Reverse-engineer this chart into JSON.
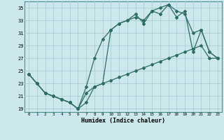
{
  "xlabel": "Humidex (Indice chaleur)",
  "xlim": [
    -0.5,
    23.5
  ],
  "ylim": [
    18.5,
    36
  ],
  "xticks": [
    0,
    1,
    2,
    3,
    4,
    5,
    6,
    7,
    8,
    9,
    10,
    11,
    12,
    13,
    14,
    15,
    16,
    17,
    18,
    19,
    20,
    21,
    22,
    23
  ],
  "yticks": [
    19,
    21,
    23,
    25,
    27,
    29,
    31,
    33,
    35
  ],
  "bg_color": "#cce8ec",
  "grid_color": "#aacdd4",
  "line_color": "#2d6b65",
  "line1_x": [
    0,
    1,
    2,
    3,
    4,
    5,
    6,
    7,
    8,
    9,
    10,
    11,
    12,
    13,
    14,
    15,
    16,
    17,
    18,
    19,
    20,
    21,
    22,
    23
  ],
  "line1_y": [
    24.5,
    23.0,
    21.5,
    21.0,
    20.5,
    20.0,
    19.0,
    22.5,
    27.0,
    30.0,
    31.5,
    32.5,
    33.0,
    33.5,
    33.0,
    34.5,
    34.0,
    35.5,
    34.5,
    34.0,
    31.0,
    31.5,
    28.0,
    27.0
  ],
  "line2_x": [
    0,
    1,
    2,
    3,
    4,
    5,
    6,
    7,
    8,
    9,
    10,
    11,
    12,
    13,
    14,
    15,
    16,
    17,
    18,
    19,
    20,
    21,
    22,
    23
  ],
  "line2_y": [
    24.5,
    23.0,
    21.5,
    21.0,
    20.5,
    20.0,
    19.0,
    20.0,
    22.5,
    23.0,
    31.5,
    32.5,
    33.0,
    34.0,
    32.5,
    34.5,
    35.0,
    35.5,
    33.5,
    34.5,
    28.0,
    31.5,
    28.0,
    27.0
  ],
  "line3_x": [
    0,
    1,
    2,
    3,
    4,
    5,
    6,
    7,
    8,
    9,
    10,
    11,
    12,
    13,
    14,
    15,
    16,
    17,
    18,
    19,
    20,
    21,
    22,
    23
  ],
  "line3_y": [
    24.5,
    23.0,
    21.5,
    21.0,
    20.5,
    20.0,
    19.0,
    21.5,
    22.5,
    23.0,
    23.5,
    24.0,
    24.5,
    25.0,
    25.5,
    26.0,
    26.5,
    27.0,
    27.5,
    28.0,
    28.5,
    29.0,
    27.0,
    27.0
  ]
}
